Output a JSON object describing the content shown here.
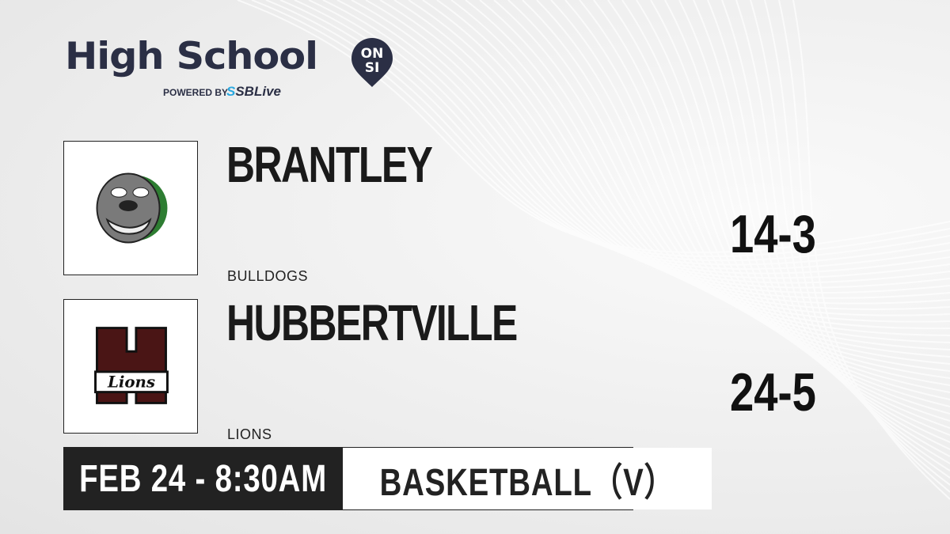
{
  "brand": {
    "title": "High School",
    "badge_top": "ON",
    "badge_bottom": "SI",
    "powered_by": "POWERED BY",
    "partner_prefix": "S",
    "partner": "SBLive"
  },
  "teams": [
    {
      "name": "BRANTLEY",
      "mascot": "BULLDOGS",
      "record": "14-3",
      "logo_icon": "bulldog-logo",
      "accent": "#2e7d32"
    },
    {
      "name": "HUBBERTVILLE",
      "mascot": "LIONS",
      "record": "24-5",
      "logo_icon": "hubbertville-h-lions-logo",
      "accent": "#5a1a1a",
      "logo_text": "Lions"
    }
  ],
  "game": {
    "datetime": "FEB 24 - 8:30AM",
    "sport": "BASKETBALL（V）"
  }
}
